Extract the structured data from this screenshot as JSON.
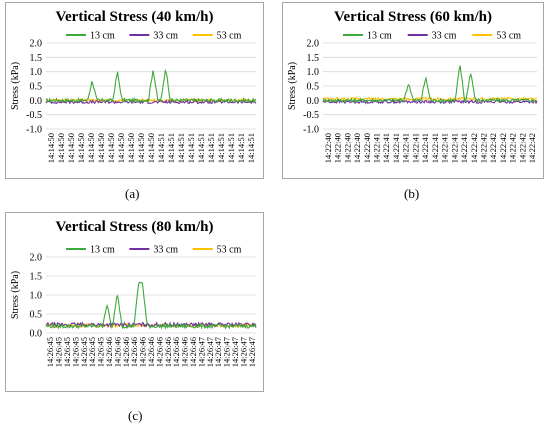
{
  "captions": [
    "(a)",
    "(b)",
    "(c)"
  ],
  "chart_data": [
    {
      "type": "line",
      "title": "Vertical Stress (40 km/h)",
      "ylabel": "Stress (kPa)",
      "xlabel": "",
      "ylim": [
        -1,
        2
      ],
      "yticks": [
        "-1.0",
        "-0.5",
        "0.0",
        "0.5",
        "1.0",
        "1.5",
        "2.0"
      ],
      "grid": true,
      "legend": "top",
      "x": [
        "14:14:50",
        "14:14:50",
        "14:14:50",
        "14:14:50",
        "14:14:50",
        "14:14:50",
        "14:14:50",
        "14:14:50",
        "14:14:50",
        "14:14:50",
        "14:14:50",
        "14:14:51",
        "14:14:51",
        "14:14:51",
        "14:14:51",
        "14:14:51",
        "14:14:51",
        "14:14:51",
        "14:14:51",
        "14:14:51",
        "14:14:51"
      ],
      "series": [
        {
          "name": "13 cm",
          "color": "#3daa3d",
          "base": 0.0,
          "noise": 0.06,
          "peaks": [
            [
              0.22,
              0.7
            ],
            [
              0.34,
              1.0
            ],
            [
              0.51,
              1.1
            ],
            [
              0.57,
              1.15
            ]
          ]
        },
        {
          "name": "33 cm",
          "color": "#7030a0",
          "base": -0.06,
          "noise": 0.05,
          "peaks": []
        },
        {
          "name": "53 cm",
          "color": "#ffc000",
          "base": 0.0,
          "noise": 0.05,
          "peaks": []
        }
      ]
    },
    {
      "type": "line",
      "title": "Vertical Stress (60 km/h)",
      "ylabel": "Stress (kPa)",
      "xlabel": "",
      "ylim": [
        -1,
        2
      ],
      "yticks": [
        "-1.0",
        "-0.5",
        "0.0",
        "0.5",
        "1.0",
        "1.5",
        "2.0"
      ],
      "grid": true,
      "legend": "top",
      "x": [
        "14:22:40",
        "14:22:40",
        "14:22:40",
        "14:22:40",
        "14:22:40",
        "14:22:41",
        "14:22:41",
        "14:22:41",
        "14:22:41",
        "14:22:41",
        "14:22:41",
        "14:22:41",
        "14:22:41",
        "14:22:41",
        "14:22:41",
        "14:22:42",
        "14:22:42",
        "14:22:42",
        "14:22:42",
        "14:22:42",
        "14:22:42",
        "14:22:42"
      ],
      "series": [
        {
          "name": "13 cm",
          "color": "#3daa3d",
          "base": 0.0,
          "noise": 0.06,
          "peaks": [
            [
              0.4,
              0.6
            ],
            [
              0.48,
              0.8
            ],
            [
              0.64,
              1.25
            ],
            [
              0.69,
              1.0
            ]
          ]
        },
        {
          "name": "33 cm",
          "color": "#7030a0",
          "base": -0.05,
          "noise": 0.05,
          "peaks": []
        },
        {
          "name": "53 cm",
          "color": "#ffc000",
          "base": 0.05,
          "noise": 0.05,
          "peaks": []
        }
      ]
    },
    {
      "type": "line",
      "title": "Vertical Stress (80 km/h)",
      "ylabel": "Stress (kPa)",
      "xlabel": "",
      "ylim": [
        0,
        2
      ],
      "yticks": [
        "0.0",
        "0.5",
        "1.0",
        "1.5",
        "2.0"
      ],
      "grid": true,
      "legend": "top",
      "x": [
        "14:26:45",
        "14:26:45",
        "14:26:45",
        "14:26:45",
        "14:26:45",
        "14:26:45",
        "14:26:45",
        "14:26:46",
        "14:26:46",
        "14:26:46",
        "14:26:46",
        "14:26:46",
        "14:26:46",
        "14:26:46",
        "14:26:46",
        "14:26:46",
        "14:26:46",
        "14:26:46",
        "14:26:47",
        "14:26:47",
        "14:26:47",
        "14:26:47",
        "14:26:47",
        "14:26:47",
        "14:26:47"
      ],
      "series": [
        {
          "name": "13 cm",
          "color": "#3daa3d",
          "base": 0.18,
          "noise": 0.05,
          "peaks": [
            [
              0.29,
              0.75
            ],
            [
              0.34,
              1.05
            ],
            [
              0.44,
              1.2
            ],
            [
              0.46,
              1.25
            ]
          ]
        },
        {
          "name": "33 cm",
          "color": "#7030a0",
          "base": 0.22,
          "noise": 0.05,
          "peaks": []
        },
        {
          "name": "53 cm",
          "color": "#ffc000",
          "base": 0.2,
          "noise": 0.05,
          "peaks": []
        }
      ]
    }
  ]
}
